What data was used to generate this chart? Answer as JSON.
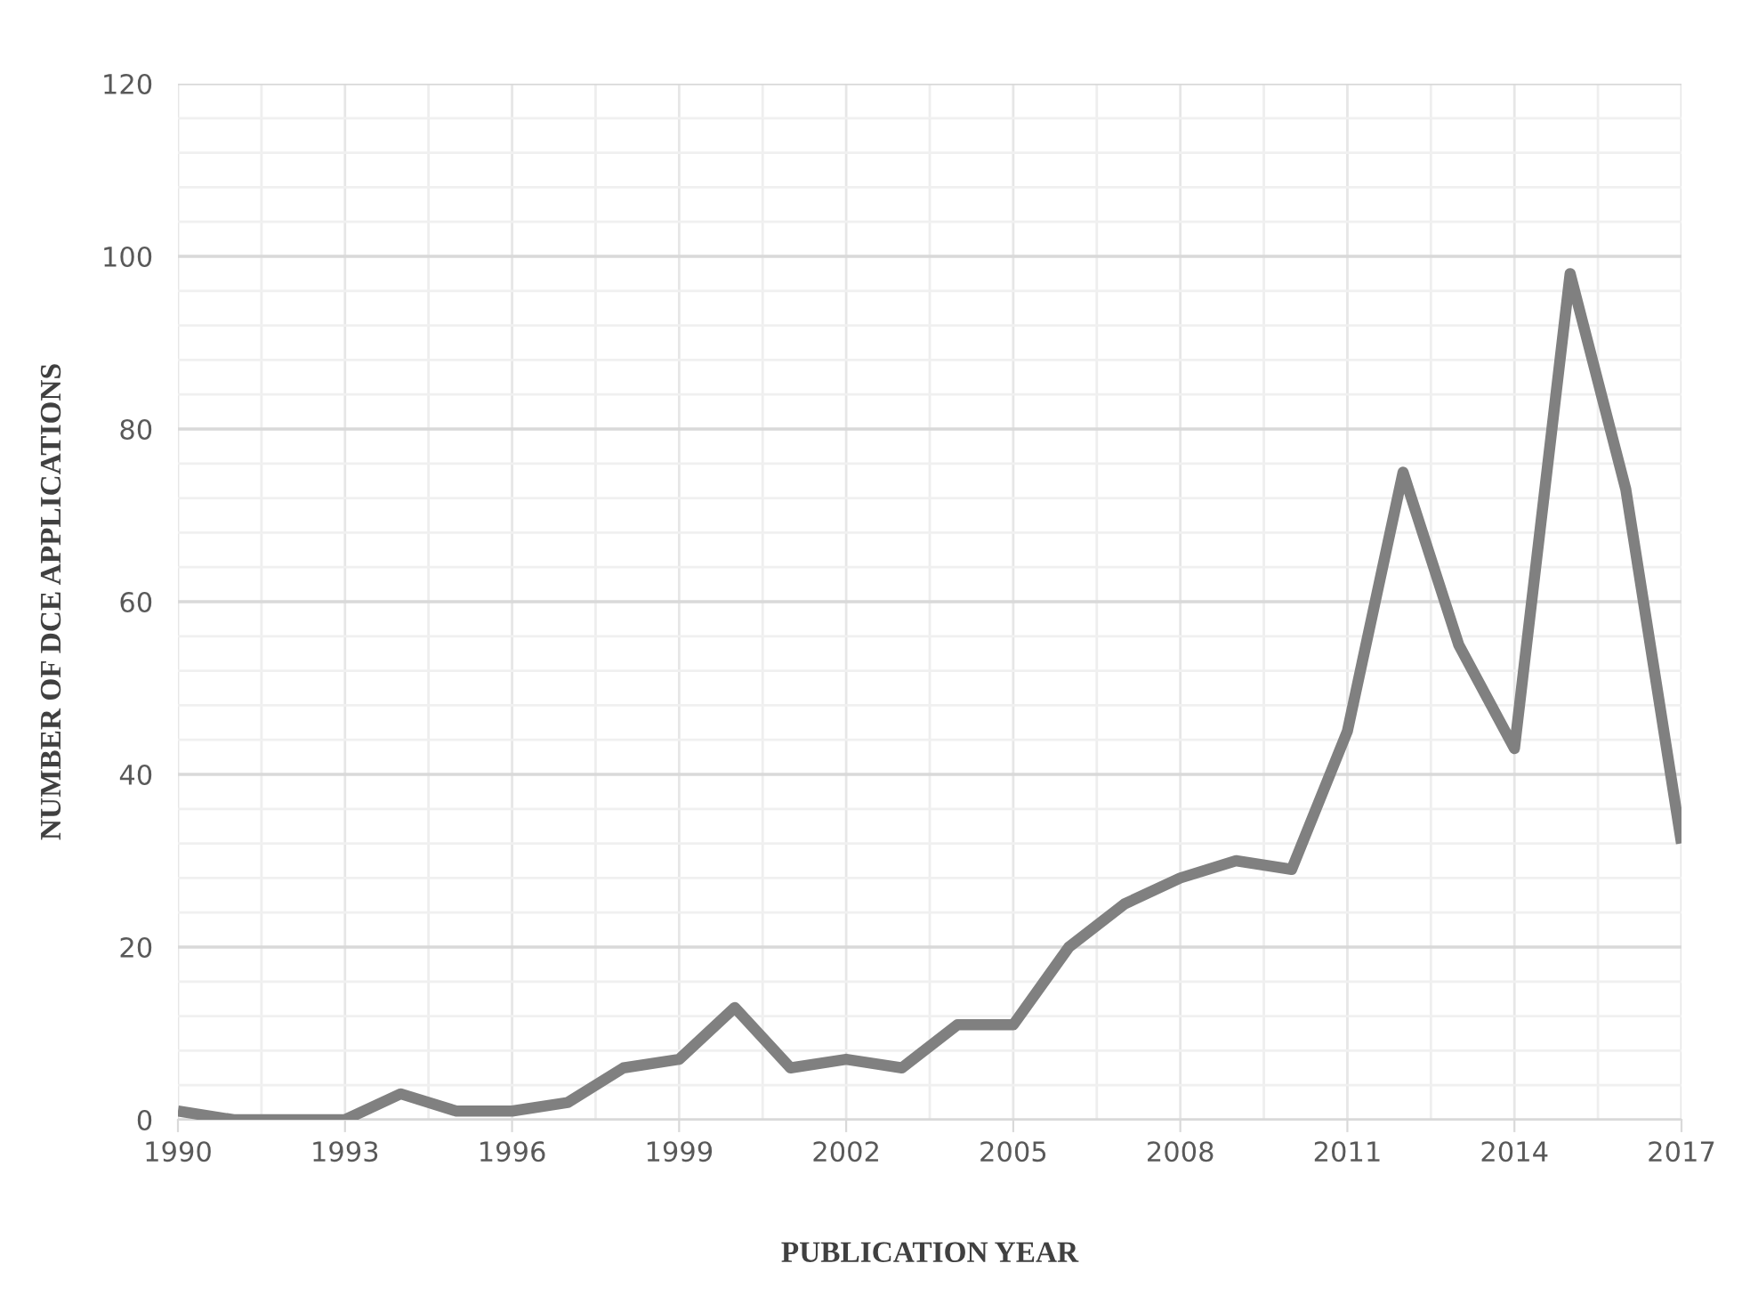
{
  "chart_data": {
    "type": "line",
    "xlabel": "PUBLICATION YEAR",
    "ylabel": "NUMBER OF DCE APPLICATIONS",
    "x": [
      1990,
      1991,
      1992,
      1993,
      1994,
      1995,
      1996,
      1997,
      1998,
      1999,
      2000,
      2001,
      2002,
      2003,
      2004,
      2005,
      2006,
      2007,
      2008,
      2009,
      2010,
      2011,
      2012,
      2013,
      2014,
      2015,
      2016,
      2017
    ],
    "series": [
      {
        "color": "#808080",
        "values": [
          1,
          0,
          0,
          0,
          3,
          1,
          1,
          2,
          6,
          7,
          13,
          6,
          7,
          6,
          11,
          11,
          20,
          25,
          28,
          30,
          29,
          45,
          75,
          55,
          43,
          98,
          73,
          32
        ]
      }
    ],
    "xlim": [
      1990,
      2017
    ],
    "xticks": [
      1990,
      1993,
      1996,
      1999,
      2002,
      2005,
      2008,
      2011,
      2014,
      2017
    ],
    "ylim": [
      0,
      120
    ],
    "yticks": [
      0,
      20,
      40,
      60,
      80,
      100,
      120
    ],
    "grid": true,
    "legend": false,
    "marker": "none",
    "line_style": "solid"
  }
}
